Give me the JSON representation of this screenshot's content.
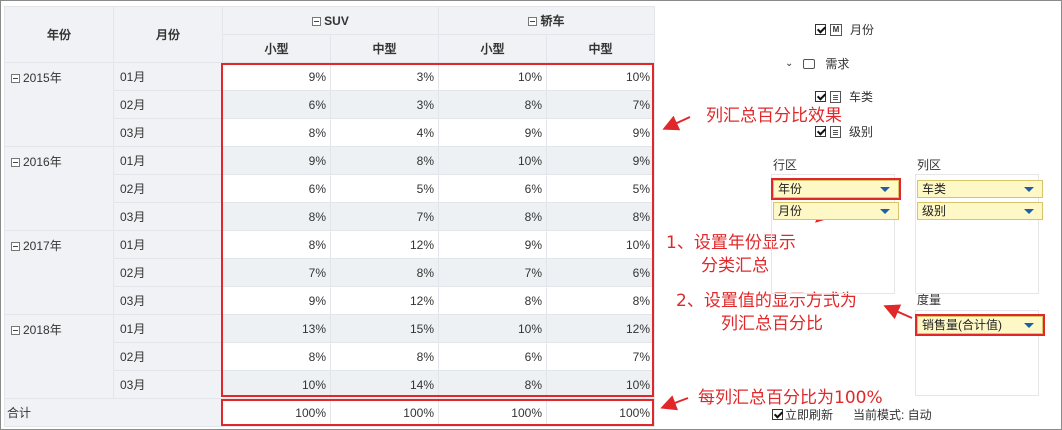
{
  "table": {
    "col_year": "年份",
    "col_month": "月份",
    "groups": [
      {
        "label": "SUV",
        "subs": [
          "小型",
          "中型"
        ]
      },
      {
        "label": "轿车",
        "subs": [
          "小型",
          "中型"
        ]
      }
    ],
    "rows": [
      {
        "year": "2015年",
        "month": "01月",
        "v": [
          "9%",
          "3%",
          "10%",
          "10%"
        ]
      },
      {
        "year": "",
        "month": "02月",
        "v": [
          "6%",
          "3%",
          "8%",
          "7%"
        ]
      },
      {
        "year": "",
        "month": "03月",
        "v": [
          "8%",
          "4%",
          "9%",
          "9%"
        ]
      },
      {
        "year": "2016年",
        "month": "01月",
        "v": [
          "9%",
          "8%",
          "10%",
          "9%"
        ]
      },
      {
        "year": "",
        "month": "02月",
        "v": [
          "6%",
          "5%",
          "6%",
          "5%"
        ]
      },
      {
        "year": "",
        "month": "03月",
        "v": [
          "8%",
          "7%",
          "8%",
          "8%"
        ]
      },
      {
        "year": "2017年",
        "month": "01月",
        "v": [
          "8%",
          "12%",
          "9%",
          "10%"
        ]
      },
      {
        "year": "",
        "month": "02月",
        "v": [
          "7%",
          "8%",
          "7%",
          "6%"
        ]
      },
      {
        "year": "",
        "month": "03月",
        "v": [
          "9%",
          "12%",
          "8%",
          "8%"
        ]
      },
      {
        "year": "2018年",
        "month": "01月",
        "v": [
          "13%",
          "15%",
          "10%",
          "12%"
        ]
      },
      {
        "year": "",
        "month": "02月",
        "v": [
          "8%",
          "8%",
          "6%",
          "7%"
        ]
      },
      {
        "year": "",
        "month": "03月",
        "v": [
          "10%",
          "14%",
          "8%",
          "10%"
        ]
      }
    ],
    "total": {
      "label": "合计",
      "v": [
        "100%",
        "100%",
        "100%",
        "100%"
      ]
    }
  },
  "annotations": {
    "a1": "列汇总百分比效果",
    "a2_line1": "1、设置年份显示",
    "a2_line2": "分类汇总",
    "a3_line1": "2、设置值的显示方式为",
    "a3_line2": "列汇总百分比",
    "a4": "每列汇总百分比为100%"
  },
  "panel": {
    "tree": {
      "month": "月份",
      "demand": "需求",
      "car_type": "车类",
      "level": "级别"
    },
    "row_zone_label": "行区",
    "col_zone_label": "列区",
    "measure_label": "度量",
    "row_fields": [
      "年份",
      "月份"
    ],
    "col_fields": [
      "车类",
      "级别"
    ],
    "measure_field": "销售量(合计值)",
    "refresh_label": "立即刷新",
    "mode_label": "当前模式: 自动"
  },
  "colors": {
    "highlight": "#e0282a",
    "field_bg": "#fdf8c6",
    "header_bg": "#f0f2f5"
  }
}
